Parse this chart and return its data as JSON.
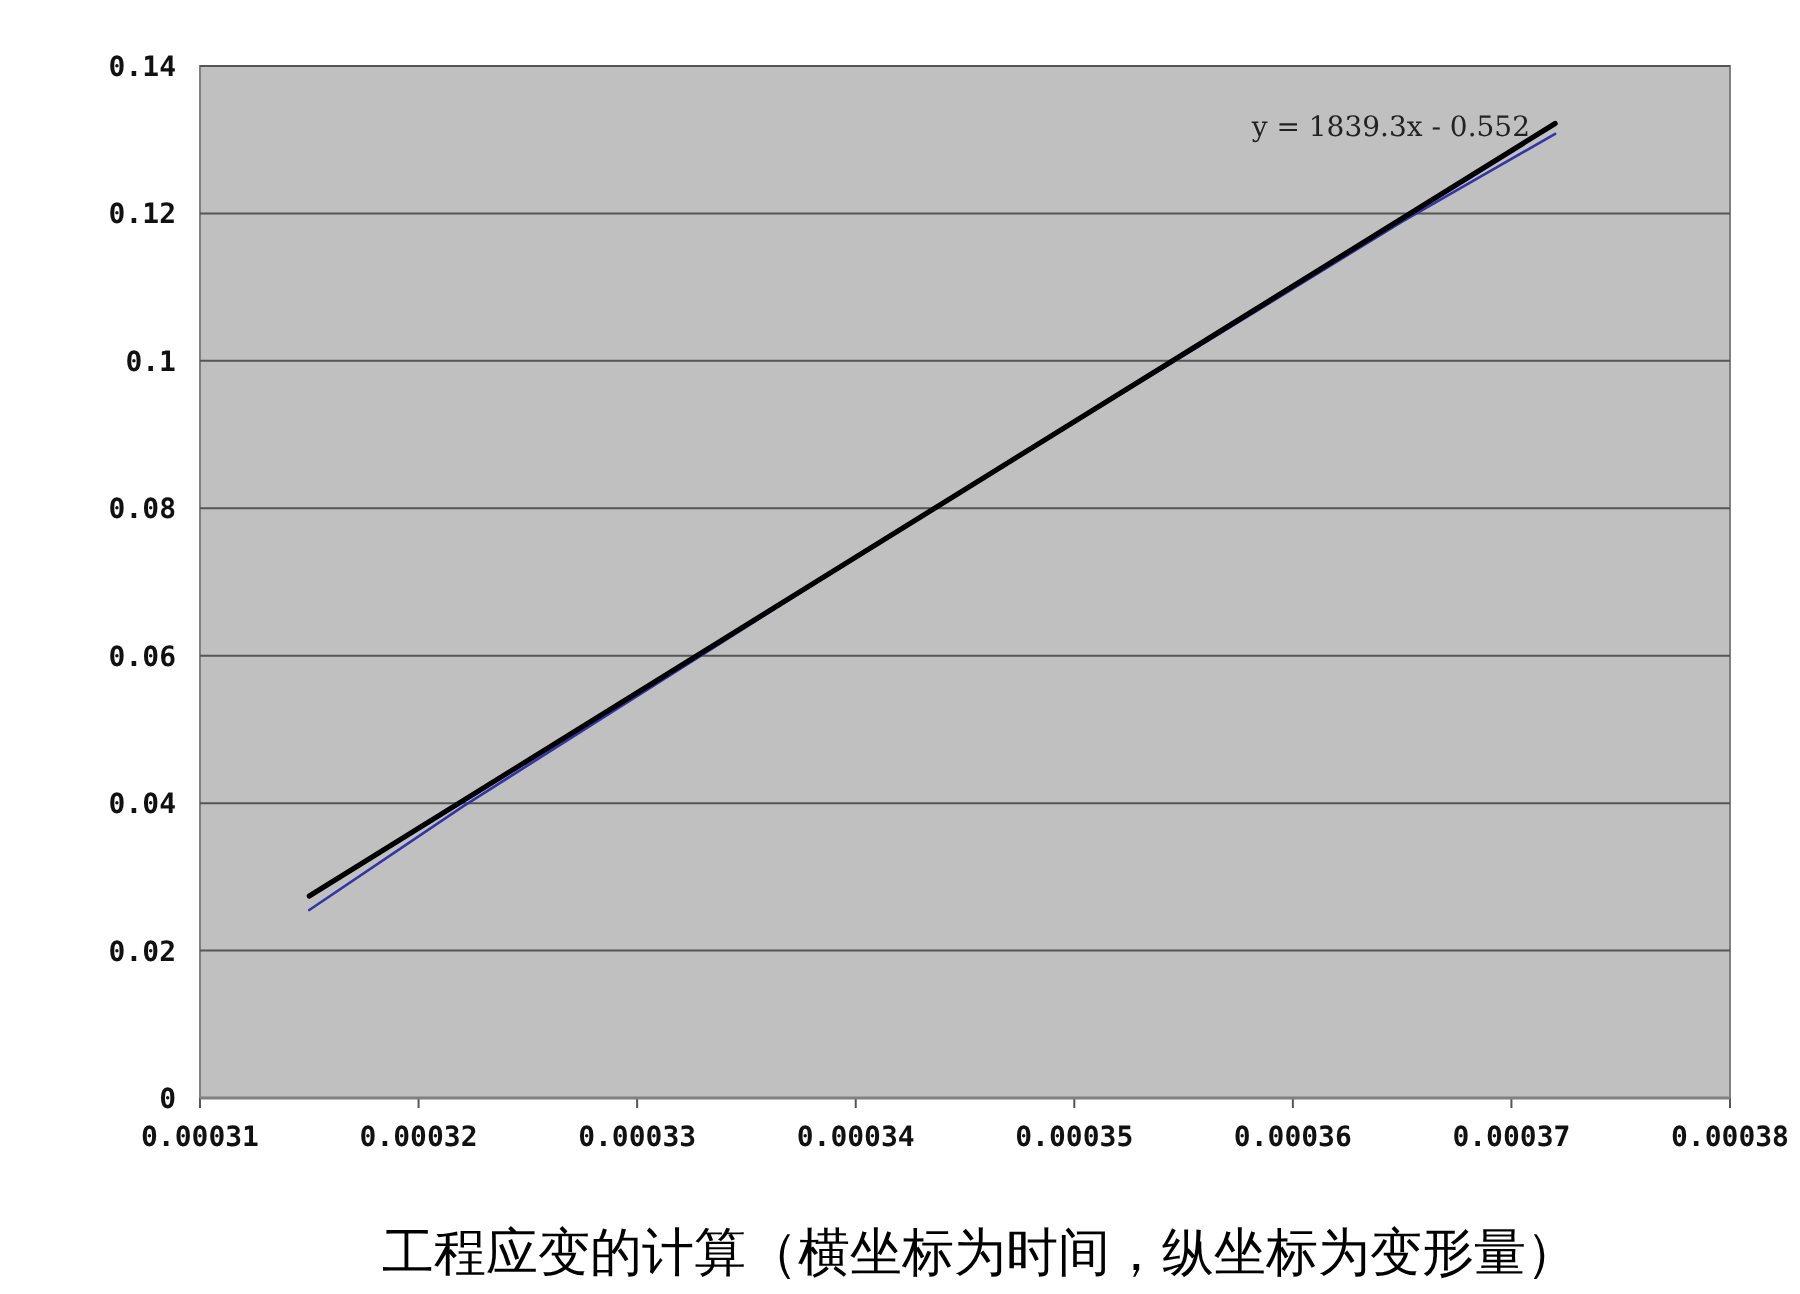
{
  "chart_data": {
    "type": "line",
    "xlim": [
      0.00031,
      0.00038
    ],
    "xticks": [
      0.00031,
      0.00032,
      0.00033,
      0.00034,
      0.00035,
      0.00036,
      0.00037,
      0.00038
    ],
    "ylim": [
      0,
      0.14
    ],
    "yticks": [
      0,
      0.02,
      0.04,
      0.06,
      0.08,
      0.1,
      0.12,
      0.14
    ],
    "grid": "y",
    "marker": "none",
    "line_style": "solid",
    "series": [
      {
        "color": "#3333aa",
        "x": [
          0.000315,
          0.000322,
          0.000344,
          0.000355,
          0.000365,
          0.000372
        ],
        "values": [
          0.0255,
          0.0395,
          0.0808,
          0.1007,
          0.1189,
          0.1308
        ]
      },
      {
        "color": "#000000",
        "x": [
          0.000315,
          0.000372
        ],
        "values": [
          0.0274,
          0.1322
        ]
      }
    ],
    "annotations": [
      "y = 1839.3x - 0.552",
      "工程应变的计算（横坐标为时间，纵坐标为变形量）"
    ]
  }
}
